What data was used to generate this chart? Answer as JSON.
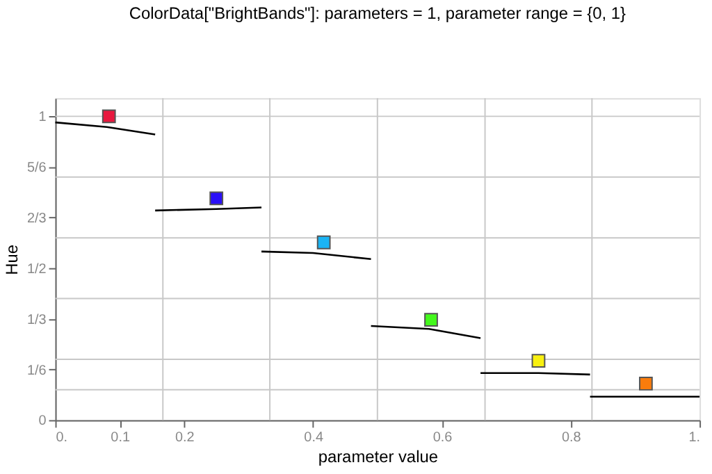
{
  "chart_data": {
    "type": "line",
    "title": "ColorData[\"BrightBands\"]:  parameters = 1, parameter range = {0, 1}",
    "xlabel": "parameter value",
    "ylabel": "Hue",
    "xlim": [
      0,
      1
    ],
    "ylim": [
      0,
      1.06
    ],
    "xticks": [
      {
        "value": 0,
        "label": "0."
      },
      0.1,
      0.2,
      0.4,
      0.6,
      0.8,
      {
        "value": 1,
        "label": "1."
      }
    ],
    "yticks": [
      0,
      {
        "value": 0.1667,
        "label": "1/6"
      },
      {
        "value": 0.3333,
        "label": "1/3"
      },
      {
        "value": 0.5,
        "label": "1/2"
      },
      {
        "value": 0.6667,
        "label": "2/3"
      },
      {
        "value": 0.8333,
        "label": "5/6"
      },
      1
    ],
    "grid": false,
    "ref_lines": [
      {
        "axis": "y",
        "value": 1,
        "color": "#c8c8c8"
      },
      {
        "axis": "y",
        "value": 0.8,
        "color": "#c8c8c8"
      },
      {
        "axis": "y",
        "value": 0.6,
        "color": "#c8c8c8"
      },
      {
        "axis": "y",
        "value": 0.4,
        "color": "#c8c8c8"
      },
      {
        "axis": "y",
        "value": 0.2,
        "color": "#c8c8c8"
      },
      {
        "axis": "y",
        "value": 0.1,
        "color": "#c8c8c8"
      },
      {
        "axis": "x",
        "value": 0.167,
        "color": "#c8c8c8"
      },
      {
        "axis": "x",
        "value": 0.333,
        "color": "#c8c8c8"
      },
      {
        "axis": "x",
        "value": 0.5,
        "color": "#c8c8c8"
      },
      {
        "axis": "x",
        "value": 0.667,
        "color": "#c8c8c8"
      },
      {
        "axis": "x",
        "value": 0.833,
        "color": "#c8c8c8"
      }
    ],
    "series": [
      {
        "color": "#000000",
        "line_style": "solid",
        "x": [
          0,
          0.08,
          0.155
        ],
        "values": [
          0.98,
          0.965,
          0.94
        ]
      },
      {
        "color": "#000000",
        "line_style": "solid",
        "x": [
          0.155,
          0.25,
          0.32
        ],
        "values": [
          0.69,
          0.695,
          0.7
        ]
      },
      {
        "color": "#000000",
        "line_style": "solid",
        "x": [
          0.32,
          0.4,
          0.49
        ],
        "values": [
          0.555,
          0.55,
          0.53
        ]
      },
      {
        "color": "#000000",
        "line_style": "solid",
        "x": [
          0.49,
          0.58,
          0.66
        ],
        "values": [
          0.31,
          0.3,
          0.27
        ]
      },
      {
        "color": "#000000",
        "line_style": "solid",
        "x": [
          0.66,
          0.75,
          0.83
        ],
        "values": [
          0.155,
          0.155,
          0.15
        ]
      },
      {
        "color": "#000000",
        "line_style": "solid",
        "x": [
          0.83,
          0.92,
          1
        ],
        "values": [
          0.077,
          0.077,
          0.077
        ]
      },
      {
        "type": "scatter",
        "marker": "square",
        "x": [
          0.0833,
          0.25,
          0.4167,
          0.5833,
          0.75,
          0.9167
        ],
        "values": [
          1.0,
          0.73,
          0.585,
          0.33,
          0.195,
          0.12
        ],
        "colors": [
          "#e8183e",
          "#2a10f8",
          "#1ab4f4",
          "#44f81c",
          "#f8f010",
          "#fa7c0c"
        ]
      }
    ]
  }
}
